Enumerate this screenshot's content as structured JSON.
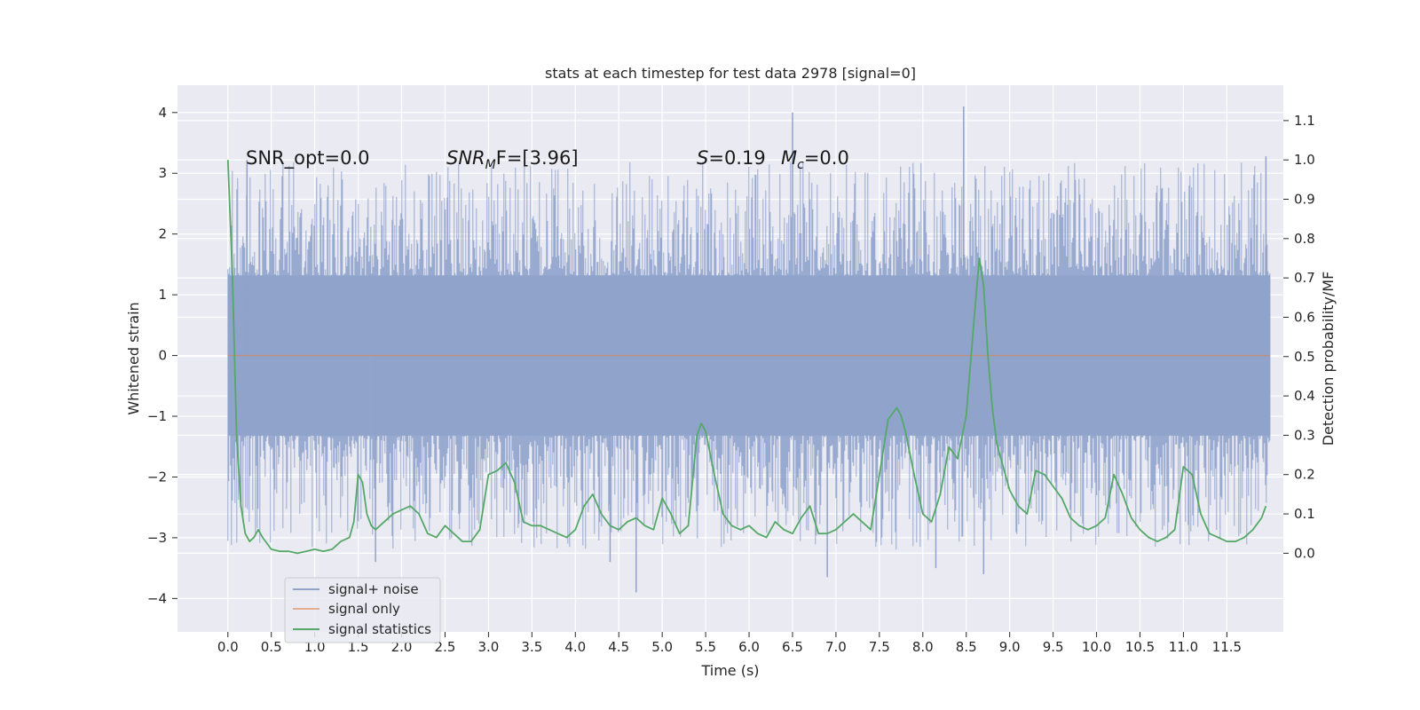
{
  "chart_data": {
    "type": "line",
    "title": "stats at each timestep for test data 2978 [signal=0]",
    "xlabel": "Time (s)",
    "ylabel_left": "Whitened strain",
    "ylabel_right": "Detection probability/MF",
    "xlim": [
      -0.58,
      12.15
    ],
    "ylim_left": [
      -4.55,
      4.45
    ],
    "ylim_right": [
      -0.2,
      1.19
    ],
    "x_ticks": [
      0.0,
      0.5,
      1.0,
      1.5,
      2.0,
      2.5,
      3.0,
      3.5,
      4.0,
      4.5,
      5.0,
      5.5,
      6.0,
      6.5,
      7.0,
      7.5,
      8.0,
      8.5,
      9.0,
      9.5,
      10.0,
      10.5,
      11.0,
      11.5
    ],
    "x_tick_labels": [
      "0.0",
      "0.5",
      "1.0",
      "1.5",
      "2.0",
      "2.5",
      "3.0",
      "3.5",
      "4.0",
      "4.5",
      "5.0",
      "5.5",
      "6.0",
      "6.5",
      "7.0",
      "7.5",
      "8.0",
      "8.5",
      "9.0",
      "9.5",
      "10.0",
      "10.5",
      "11.0",
      "11.5"
    ],
    "y_left_ticks": [
      -4,
      -3,
      -2,
      -1,
      0,
      1,
      2,
      3,
      4
    ],
    "y_left_tick_labels": [
      "−4",
      "−3",
      "−2",
      "−1",
      "0",
      "1",
      "2",
      "3",
      "4"
    ],
    "y_right_ticks": [
      0.0,
      0.1,
      0.2,
      0.3,
      0.4,
      0.5,
      0.6,
      0.7,
      0.8,
      0.9,
      1.0,
      1.1
    ],
    "y_right_tick_labels": [
      "0.0",
      "0.1",
      "0.2",
      "0.3",
      "0.4",
      "0.5",
      "0.6",
      "0.7",
      "0.8",
      "0.9",
      "1.0",
      "1.1"
    ],
    "grid": true,
    "legend_placement": "lower-left",
    "series": [
      {
        "name": "signal+ noise",
        "axis": "left",
        "color": "#8fa3cb",
        "x_range": [
          0.0,
          12.0
        ],
        "typical_range": [
          -1.9,
          1.9
        ],
        "extreme_peaks": [
          {
            "x": 6.5,
            "y": 4.0
          },
          {
            "x": 8.47,
            "y": 4.1
          },
          {
            "x": 11.95,
            "y": 3.28
          },
          {
            "x": 0.22,
            "y": 3.22
          },
          {
            "x": 4.7,
            "y": -3.9
          },
          {
            "x": 8.7,
            "y": -3.6
          },
          {
            "x": 6.9,
            "y": -3.65
          },
          {
            "x": 1.7,
            "y": -3.4
          },
          {
            "x": 4.4,
            "y": -3.4
          },
          {
            "x": 8.15,
            "y": -3.5
          }
        ]
      },
      {
        "name": "signal only",
        "axis": "left",
        "color": "#dd8452",
        "x": [
          0.0,
          12.0
        ],
        "y": [
          0.0,
          0.0
        ]
      },
      {
        "name": "signal statistics",
        "axis": "right",
        "color": "#55a868",
        "x": [
          0.0,
          0.05,
          0.1,
          0.15,
          0.2,
          0.25,
          0.3,
          0.35,
          0.4,
          0.5,
          0.6,
          0.7,
          0.8,
          0.9,
          1.0,
          1.1,
          1.2,
          1.3,
          1.4,
          1.45,
          1.5,
          1.55,
          1.6,
          1.65,
          1.7,
          1.75,
          1.8,
          1.9,
          2.0,
          2.1,
          2.2,
          2.3,
          2.4,
          2.5,
          2.6,
          2.7,
          2.8,
          2.9,
          3.0,
          3.1,
          3.2,
          3.3,
          3.4,
          3.5,
          3.6,
          3.7,
          3.8,
          3.9,
          4.0,
          4.1,
          4.2,
          4.3,
          4.4,
          4.5,
          4.6,
          4.7,
          4.8,
          4.9,
          5.0,
          5.1,
          5.2,
          5.3,
          5.4,
          5.45,
          5.5,
          5.6,
          5.7,
          5.8,
          5.9,
          6.0,
          6.1,
          6.2,
          6.3,
          6.4,
          6.5,
          6.6,
          6.7,
          6.8,
          6.9,
          7.0,
          7.1,
          7.2,
          7.3,
          7.4,
          7.5,
          7.6,
          7.7,
          7.75,
          7.8,
          7.9,
          8.0,
          8.1,
          8.2,
          8.3,
          8.4,
          8.5,
          8.6,
          8.65,
          8.7,
          8.75,
          8.8,
          8.85,
          8.9,
          8.95,
          9.0,
          9.1,
          9.2,
          9.3,
          9.4,
          9.5,
          9.6,
          9.7,
          9.8,
          9.9,
          10.0,
          10.1,
          10.2,
          10.3,
          10.4,
          10.5,
          10.6,
          10.7,
          10.8,
          10.9,
          11.0,
          11.1,
          11.2,
          11.3,
          11.4,
          11.5,
          11.6,
          11.7,
          11.8,
          11.9,
          11.95
        ],
        "y": [
          1.0,
          0.72,
          0.3,
          0.12,
          0.05,
          0.03,
          0.04,
          0.06,
          0.04,
          0.01,
          0.005,
          0.005,
          0.0,
          0.005,
          0.01,
          0.005,
          0.01,
          0.03,
          0.04,
          0.08,
          0.2,
          0.18,
          0.1,
          0.07,
          0.06,
          0.07,
          0.08,
          0.1,
          0.11,
          0.12,
          0.1,
          0.05,
          0.04,
          0.07,
          0.05,
          0.03,
          0.03,
          0.06,
          0.2,
          0.21,
          0.23,
          0.18,
          0.08,
          0.07,
          0.07,
          0.06,
          0.05,
          0.04,
          0.06,
          0.12,
          0.15,
          0.1,
          0.07,
          0.06,
          0.08,
          0.09,
          0.07,
          0.06,
          0.14,
          0.1,
          0.05,
          0.07,
          0.3,
          0.33,
          0.31,
          0.2,
          0.1,
          0.07,
          0.06,
          0.07,
          0.05,
          0.04,
          0.08,
          0.06,
          0.05,
          0.09,
          0.12,
          0.05,
          0.05,
          0.06,
          0.08,
          0.1,
          0.08,
          0.06,
          0.2,
          0.34,
          0.37,
          0.35,
          0.31,
          0.2,
          0.1,
          0.08,
          0.15,
          0.27,
          0.24,
          0.35,
          0.62,
          0.75,
          0.68,
          0.5,
          0.37,
          0.28,
          0.24,
          0.2,
          0.16,
          0.12,
          0.1,
          0.21,
          0.2,
          0.17,
          0.14,
          0.09,
          0.07,
          0.06,
          0.07,
          0.09,
          0.2,
          0.15,
          0.09,
          0.06,
          0.04,
          0.03,
          0.04,
          0.06,
          0.22,
          0.2,
          0.1,
          0.05,
          0.04,
          0.03,
          0.03,
          0.04,
          0.06,
          0.09,
          0.12
        ]
      }
    ],
    "annotations": [
      {
        "text": "SNR_opt=0.0",
        "x": 0.2,
        "y_right": 1.0
      },
      {
        "text": "SNR",
        "sub": "M",
        "rest": "F=[3.96]",
        "x": 2.6,
        "y_right": 1.0
      },
      {
        "text": "S",
        "rest": "=0.19",
        "x": 5.6,
        "y_right": 1.0
      },
      {
        "text": "M",
        "sub": "c",
        "rest": "=0.0",
        "x": 6.6,
        "y_right": 1.0
      }
    ]
  }
}
